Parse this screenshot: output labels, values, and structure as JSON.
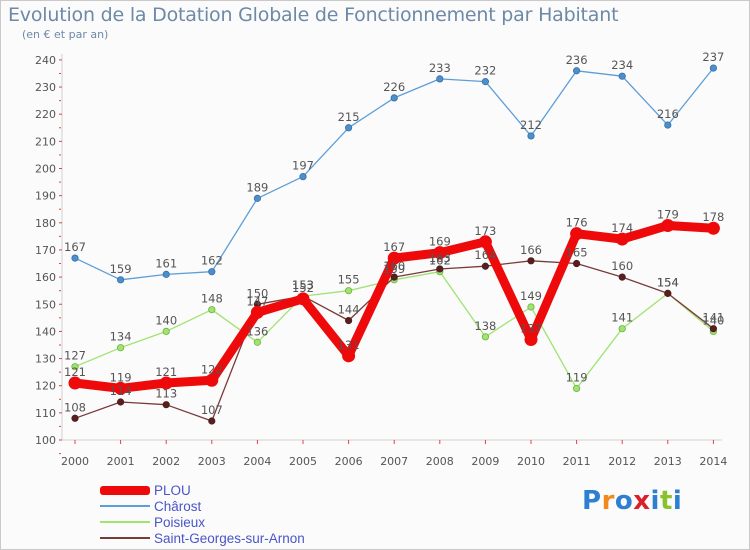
{
  "header": {
    "title": "Evolution de la Dotation Globale de Fonctionnement par Habitant",
    "subtitle": "(en € et par an)"
  },
  "logo": {
    "text": "Proxiti"
  },
  "colors": {
    "PLOU": "#ee0a0a",
    "Chârost": "#5e9ed6",
    "Poisieux": "#9ee46f",
    "Saint-Georges-sur-Arnon": "#7a3a3a"
  },
  "chart_data": {
    "type": "line",
    "title": "Evolution de la Dotation Globale de Fonctionnement par Habitant",
    "subtitle": "(en € et par an)",
    "x": [
      2000,
      2001,
      2002,
      2003,
      2004,
      2005,
      2006,
      2007,
      2008,
      2009,
      2010,
      2011,
      2012,
      2013,
      2014
    ],
    "ylim": [
      100,
      240
    ],
    "yticks": [
      100,
      110,
      120,
      130,
      140,
      150,
      160,
      170,
      180,
      190,
      200,
      210,
      220,
      230,
      240
    ],
    "grid": false,
    "legend_position": "bottom-left",
    "series": [
      {
        "name": "PLOU",
        "color": "#ee0a0a",
        "values": [
          121,
          119,
          121,
          122,
          147,
          152,
          131,
          167,
          169,
          173,
          137,
          176,
          174,
          179,
          178
        ]
      },
      {
        "name": "Chârost",
        "color": "#5e9ed6",
        "values": [
          167,
          159,
          161,
          162,
          189,
          197,
          215,
          226,
          233,
          232,
          212,
          236,
          234,
          216,
          237
        ]
      },
      {
        "name": "Poisieux",
        "color": "#9ee46f",
        "values": [
          127,
          134,
          140,
          148,
          136,
          153,
          155,
          159,
          162,
          138,
          149,
          119,
          141,
          154,
          140
        ]
      },
      {
        "name": "Saint-Georges-sur-Arnon",
        "color": "#7a3a3a",
        "values": [
          108,
          114,
          113,
          107,
          150,
          153,
          144,
          160,
          163,
          164,
          166,
          165,
          160,
          154,
          141
        ]
      }
    ]
  }
}
